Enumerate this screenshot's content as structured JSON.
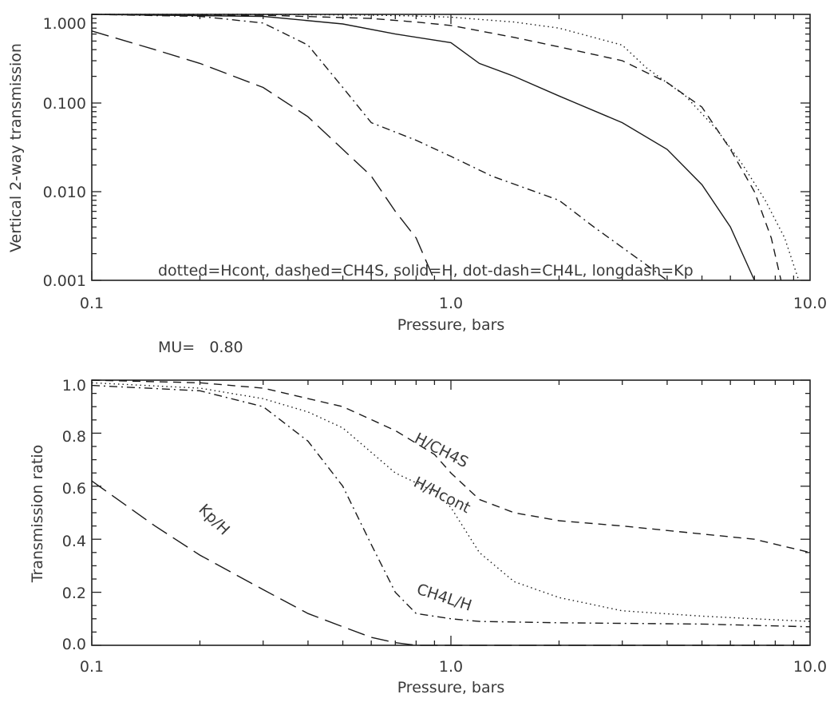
{
  "chart_data": [
    {
      "type": "line",
      "xlabel": "Pressure, bars",
      "ylabel": "Vertical 2-way transmission",
      "xscale": "log",
      "yscale": "log",
      "xlim": [
        0.1,
        10.0
      ],
      "ylim": [
        0.001,
        1.0
      ],
      "xticks": [
        "0.1",
        "1.0",
        "10.0"
      ],
      "yticks": [
        "0.001",
        "0.010",
        "0.100",
        "1.000"
      ],
      "legend_text": "dotted=Hcont, dashed=CH4S, solid=H, dot-dash=CH4L, longdash=Kp",
      "series": [
        {
          "name": "Hcont",
          "style": "dotted",
          "x": [
            0.1,
            0.3,
            0.6,
            0.8,
            1.0,
            1.5,
            2.0,
            3.0,
            3.5,
            4.5,
            5.5,
            6.5,
            7.5,
            8.5,
            9.3
          ],
          "y": [
            1.0,
            1.0,
            0.98,
            0.96,
            0.93,
            0.82,
            0.7,
            0.45,
            0.25,
            0.12,
            0.05,
            0.02,
            0.008,
            0.003,
            0.001
          ]
        },
        {
          "name": "CH4S",
          "style": "dashed",
          "x": [
            0.1,
            0.3,
            0.6,
            0.8,
            1.0,
            1.5,
            2.0,
            3.0,
            4.0,
            5.0,
            6.0,
            7.0,
            7.8,
            8.3
          ],
          "y": [
            1.0,
            0.98,
            0.9,
            0.82,
            0.75,
            0.55,
            0.43,
            0.3,
            0.17,
            0.09,
            0.03,
            0.01,
            0.003,
            0.001
          ]
        },
        {
          "name": "H",
          "style": "solid",
          "x": [
            0.1,
            0.3,
            0.5,
            0.7,
            1.0,
            1.2,
            1.5,
            2.0,
            3.0,
            4.0,
            5.0,
            6.0,
            7.0
          ],
          "y": [
            1.0,
            0.95,
            0.78,
            0.6,
            0.48,
            0.28,
            0.2,
            0.12,
            0.06,
            0.03,
            0.012,
            0.004,
            0.001
          ]
        },
        {
          "name": "CH4L",
          "style": "dot-dash",
          "x": [
            0.1,
            0.2,
            0.3,
            0.4,
            0.5,
            0.6,
            0.8,
            1.0,
            1.3,
            2.0,
            2.5,
            3.5,
            4.0
          ],
          "y": [
            1.0,
            0.95,
            0.8,
            0.45,
            0.15,
            0.06,
            0.038,
            0.025,
            0.015,
            0.008,
            0.004,
            0.0015,
            0.001
          ]
        },
        {
          "name": "Kp",
          "style": "longdash",
          "x": [
            0.1,
            0.15,
            0.2,
            0.3,
            0.4,
            0.5,
            0.6,
            0.7,
            0.8,
            0.9
          ],
          "y": [
            0.65,
            0.4,
            0.28,
            0.15,
            0.07,
            0.03,
            0.015,
            0.006,
            0.003,
            0.001
          ]
        }
      ]
    },
    {
      "type": "line",
      "annotation": "MU=   0.80",
      "xlabel": "Pressure, bars",
      "ylabel": "Transmission ratio",
      "xscale": "log",
      "xlim": [
        0.1,
        10.0
      ],
      "ylim": [
        0.0,
        1.0
      ],
      "xticks": [
        "0.1",
        "1.0",
        "10.0"
      ],
      "yticks": [
        "0.0",
        "0.2",
        "0.4",
        "0.6",
        "0.8",
        "1.0"
      ],
      "series": [
        {
          "name": "H/CH4S",
          "style": "dashed",
          "x": [
            0.1,
            0.2,
            0.3,
            0.5,
            0.7,
            0.9,
            1.0,
            1.2,
            1.5,
            2.0,
            3.0,
            5.0,
            7.0,
            10.0
          ],
          "y": [
            1.0,
            0.99,
            0.97,
            0.9,
            0.81,
            0.72,
            0.65,
            0.55,
            0.5,
            0.47,
            0.45,
            0.42,
            0.4,
            0.35
          ]
        },
        {
          "name": "H/Hcont",
          "style": "dotted",
          "x": [
            0.1,
            0.2,
            0.3,
            0.4,
            0.5,
            0.7,
            0.9,
            1.0,
            1.2,
            1.5,
            2.0,
            3.0,
            5.0,
            7.0,
            10.0
          ],
          "y": [
            0.99,
            0.97,
            0.93,
            0.88,
            0.82,
            0.65,
            0.58,
            0.52,
            0.35,
            0.24,
            0.18,
            0.13,
            0.11,
            0.1,
            0.09
          ]
        },
        {
          "name": "CH4L/H",
          "style": "dot-dash",
          "x": [
            0.1,
            0.2,
            0.3,
            0.4,
            0.5,
            0.6,
            0.7,
            0.8,
            1.0,
            1.2,
            2.0,
            5.0,
            10.0
          ],
          "y": [
            0.98,
            0.96,
            0.9,
            0.77,
            0.6,
            0.38,
            0.2,
            0.12,
            0.1,
            0.09,
            0.085,
            0.08,
            0.07
          ]
        },
        {
          "name": "Kp/H",
          "style": "longdash",
          "x": [
            0.1,
            0.15,
            0.2,
            0.3,
            0.4,
            0.5,
            0.6,
            0.7,
            0.8,
            1.0,
            2.0,
            10.0
          ],
          "y": [
            0.62,
            0.45,
            0.34,
            0.21,
            0.12,
            0.07,
            0.03,
            0.01,
            0.0,
            0.0,
            0.0,
            0.0
          ]
        }
      ],
      "labels": [
        "H/CH4S",
        "H/Hcont",
        "CH4L/H",
        "Kp/H"
      ]
    }
  ]
}
